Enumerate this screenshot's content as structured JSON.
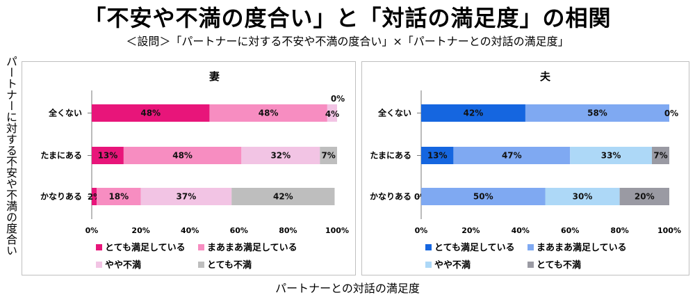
{
  "title": "「不安や不満の度合い」と「対話の満足度」の相関",
  "subtitle": "＜設問＞「パートナーに対する不安や不満の度合い」×「パートナーとの対話の満足度」",
  "ylabel": "パートナーに対する不安や不満の度合い",
  "xlabel": "パートナーとの対話の満足度",
  "chart_data": [
    {
      "type": "bar",
      "stacked": true,
      "orientation": "horizontal",
      "title": "妻",
      "categories": [
        "全くない",
        "たまにある",
        "かなりある"
      ],
      "series": [
        {
          "name": "とても満足している",
          "values": [
            48,
            13,
            2
          ],
          "labels": [
            "48%",
            "13%",
            "2%"
          ],
          "color": "#E8157A"
        },
        {
          "name": "まあまあ満足している",
          "values": [
            48,
            48,
            18
          ],
          "labels": [
            "48%",
            "48%",
            "18%"
          ],
          "color": "#F78DC1"
        },
        {
          "name": "やや不満",
          "values": [
            4,
            32,
            37
          ],
          "labels": [
            "4%",
            "32%",
            "37%"
          ],
          "color": "#F2C4E4"
        },
        {
          "name": "とても不満",
          "values": [
            0,
            7,
            42
          ],
          "labels": [
            "0%",
            "7%",
            "42%"
          ],
          "color": "#BEBEBE"
        }
      ],
      "xlim": [
        0,
        100
      ],
      "xticks": [
        "0%",
        "20%",
        "40%",
        "60%",
        "80%",
        "100%"
      ]
    },
    {
      "type": "bar",
      "stacked": true,
      "orientation": "horizontal",
      "title": "夫",
      "categories": [
        "全くない",
        "たまにある",
        "かなりある"
      ],
      "series": [
        {
          "name": "とても満足している",
          "values": [
            42,
            13,
            0
          ],
          "labels": [
            "42%",
            "13%",
            "0%"
          ],
          "color": "#1566E0"
        },
        {
          "name": "まあまあ満足している",
          "values": [
            58,
            47,
            50
          ],
          "labels": [
            "58%",
            "47%",
            "50%"
          ],
          "color": "#7FA9F2"
        },
        {
          "name": "やや不満",
          "values": [
            0,
            33,
            30
          ],
          "labels": [
            "0%",
            "33%",
            "30%"
          ],
          "color": "#ADD8F7"
        },
        {
          "name": "とても不満",
          "values": [
            0,
            7,
            20
          ],
          "labels": [
            "",
            "7%",
            "20%"
          ],
          "color": "#9A9AA3"
        }
      ],
      "xlim": [
        0,
        100
      ],
      "xticks": [
        "0%",
        "20%",
        "40%",
        "60%",
        "80%",
        "100%"
      ]
    }
  ]
}
